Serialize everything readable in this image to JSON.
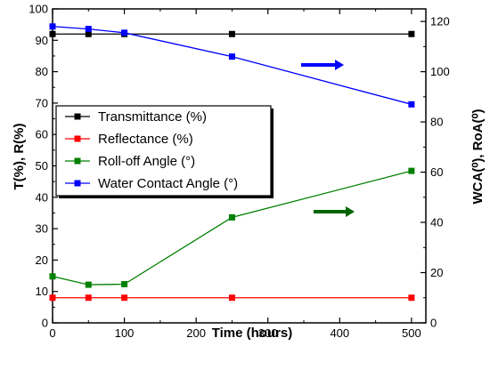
{
  "chart_data": {
    "type": "line",
    "xlabel": "Time (hours)",
    "ylabel_left": "T(%), R(%)",
    "ylabel_right": "WCA(⁰), RoA(⁰)",
    "x_range": [
      0,
      520
    ],
    "ylim_left": [
      0,
      100
    ],
    "ylim_right": [
      0,
      125
    ],
    "x_ticks": [
      0,
      100,
      200,
      300,
      400,
      500
    ],
    "y_ticks_left": [
      0,
      10,
      20,
      30,
      40,
      50,
      60,
      70,
      80,
      90,
      100
    ],
    "y_ticks_right": [
      0,
      20,
      40,
      60,
      80,
      100,
      120
    ],
    "grid": false,
    "legend_position": "left-middle",
    "series": [
      {
        "name": "Transmittance (%)",
        "axis": "left",
        "color": "#000000",
        "x": [
          0,
          50,
          100,
          250,
          500
        ],
        "y": [
          92,
          92,
          92,
          92,
          92
        ]
      },
      {
        "name": "Reflectance (%)",
        "axis": "left",
        "color": "#ff0000",
        "x": [
          0,
          50,
          100,
          250,
          500
        ],
        "y": [
          8,
          8,
          8,
          8,
          8
        ]
      },
      {
        "name": "Roll-off Angle (°)",
        "axis": "right",
        "color": "#008000",
        "x": [
          0,
          50,
          100,
          250,
          500
        ],
        "y": [
          18.5,
          15.2,
          15.4,
          42,
          60.5
        ]
      },
      {
        "name": "Water Contact Angle (°)",
        "axis": "right",
        "color": "#0000ff",
        "x": [
          0,
          50,
          100,
          250,
          500
        ],
        "y": [
          118,
          117,
          115.5,
          106,
          87
        ]
      }
    ],
    "annotations": [
      {
        "type": "arrow",
        "color": "#0000ff",
        "direction": "right",
        "points_to": "right-axis"
      },
      {
        "type": "arrow",
        "color": "#006400",
        "direction": "right",
        "points_to": "right-axis"
      }
    ]
  }
}
